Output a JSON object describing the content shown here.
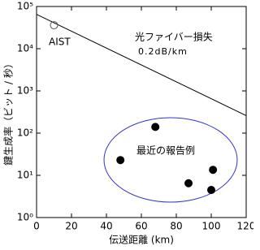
{
  "chart_data": {
    "type": "scatter",
    "xlabel": "伝送距離 (km)",
    "ylabel": "鍵生成率（ビット / 秒）",
    "xlim": [
      0,
      120
    ],
    "xticks": [
      0,
      20,
      40,
      60,
      80,
      100,
      120
    ],
    "ylim": [
      1,
      100000
    ],
    "log_y": true,
    "yticks": [
      {
        "value": 1,
        "label": "10⁰"
      },
      {
        "value": 10,
        "label": "10¹"
      },
      {
        "value": 100,
        "label": "10²"
      },
      {
        "value": 1000,
        "label": "10³"
      },
      {
        "value": 10000,
        "label": "10⁴"
      },
      {
        "value": 100000,
        "label": "10⁵"
      }
    ],
    "series": [
      {
        "name": "光ファイバー損失",
        "kind": "line",
        "color": "#000000",
        "x": [
          0,
          120
        ],
        "values": [
          65000,
          260
        ]
      },
      {
        "name": "AIST",
        "kind": "open",
        "color": "#555555",
        "x": [
          10
        ],
        "values": [
          36000
        ]
      },
      {
        "name": "最近の報告例",
        "kind": "filled",
        "color": "#000000",
        "x": [
          48,
          68,
          87,
          100,
          101
        ],
        "values": [
          23,
          140,
          6.5,
          4.5,
          13.5
        ]
      }
    ],
    "annotations": [
      "0.2dB/km"
    ]
  }
}
